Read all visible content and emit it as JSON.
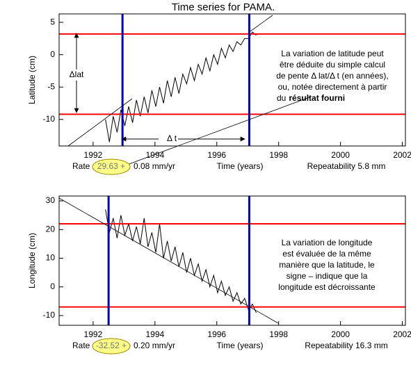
{
  "chart_data": [
    {
      "type": "line",
      "title": "Time series for PAMA.",
      "ylabel": "Latitude (cm)",
      "xlabel": "Time (years)",
      "xlim": [
        1990.9,
        2002.1
      ],
      "xticks": [
        1992,
        1994,
        1996,
        1998,
        2000,
        2002
      ],
      "ylim": [
        -14.1,
        6.3
      ],
      "yticks": [
        -10,
        -5,
        0,
        5
      ],
      "color": "#000000",
      "x": [
        1992.4,
        1992.525,
        1992.65,
        1992.775,
        1992.9,
        1993.025,
        1993.15,
        1993.275,
        1993.4,
        1993.525,
        1993.65,
        1993.775,
        1993.9,
        1994.025,
        1994.15,
        1994.275,
        1994.4,
        1994.525,
        1994.65,
        1994.775,
        1994.9,
        1995.025,
        1995.15,
        1995.275,
        1995.4,
        1995.525,
        1995.65,
        1995.775,
        1995.9,
        1996.025,
        1996.15,
        1996.275,
        1996.4,
        1996.525,
        1996.65,
        1996.775,
        1996.9,
        1997.025,
        1997.15,
        1997.275
      ],
      "values": [
        -10,
        -13.5,
        -9.5,
        -12,
        -8.5,
        -11,
        -8,
        -10.5,
        -7,
        -9.5,
        -6.5,
        -9,
        -5.5,
        -8,
        -5,
        -7.5,
        -4,
        -6.5,
        -3.5,
        -6,
        -3,
        -4.5,
        -2,
        -4,
        -1.5,
        -3,
        -0.5,
        -2.5,
        0,
        -1.5,
        1,
        -0.5,
        1.5,
        0.5,
        2,
        1.5,
        2.5,
        2.5,
        3.5,
        3
      ],
      "ref_y": [
        3.2,
        -9.2
      ],
      "ref_y_color": "#ff0000",
      "ref_x": [
        1992.95,
        1997.05
      ],
      "ref_x_color": "#0000cc",
      "rate_label": "Rate",
      "rate_value": "29.63 +",
      "rate_error": "0.08 mm/yr",
      "repeatability": "Repeatability 5.8 mm",
      "delta_y_label": "Δlat",
      "delta_x_label": "Δ t",
      "note": [
        "La variation de latitude peut",
        "être déduite du simple calcul",
        "de pente Δ lat/Δ t (en années),",
        "ou, notée directement à partir",
        "du"
      ],
      "note_emphasis": "résultat fourni"
    },
    {
      "type": "line",
      "ylabel": "Longitude (cm)",
      "xlabel": "Time (years)",
      "xlim": [
        1990.9,
        2002.1
      ],
      "xticks": [
        1992,
        1994,
        1996,
        1998,
        2000,
        2002
      ],
      "ylim": [
        -13.4,
        31.7
      ],
      "yticks": [
        -10,
        0,
        10,
        20,
        30
      ],
      "color": "#000000",
      "x": [
        1992.4,
        1992.525,
        1992.65,
        1992.775,
        1992.9,
        1993.025,
        1993.15,
        1993.275,
        1993.4,
        1993.525,
        1993.65,
        1993.775,
        1993.9,
        1994.025,
        1994.15,
        1994.275,
        1994.4,
        1994.525,
        1994.65,
        1994.775,
        1994.9,
        1995.025,
        1995.15,
        1995.275,
        1995.4,
        1995.525,
        1995.65,
        1995.775,
        1995.9,
        1996.025,
        1996.15,
        1996.275,
        1996.4,
        1996.525,
        1996.65,
        1996.775,
        1996.9,
        1997.025,
        1997.15,
        1997.275
      ],
      "values": [
        27,
        19,
        24,
        17,
        25,
        18,
        22,
        16,
        21,
        15,
        24,
        14,
        19,
        12,
        22,
        10,
        16,
        9,
        14,
        7,
        12,
        5,
        10,
        4,
        8,
        2,
        6,
        0,
        4,
        -2,
        2,
        -3,
        0,
        -5,
        -2,
        -6,
        -4,
        -8,
        -6,
        -9
      ],
      "ref_y": [
        22,
        -7
      ],
      "ref_y_color": "#ff0000",
      "ref_x": [
        1992.5,
        1997.05
      ],
      "ref_x_color": "#0000cc",
      "rate_label": "Rate",
      "rate_value": "-32.52 +",
      "rate_error": "0.20 mm/yr",
      "repeatability": "Repeatability 16.3 mm",
      "note": [
        "La variation de longitude",
        "est évaluée de la même",
        "manière que la latitude, le",
        "signe – indique que la",
        "longitude est décroissante"
      ]
    }
  ]
}
